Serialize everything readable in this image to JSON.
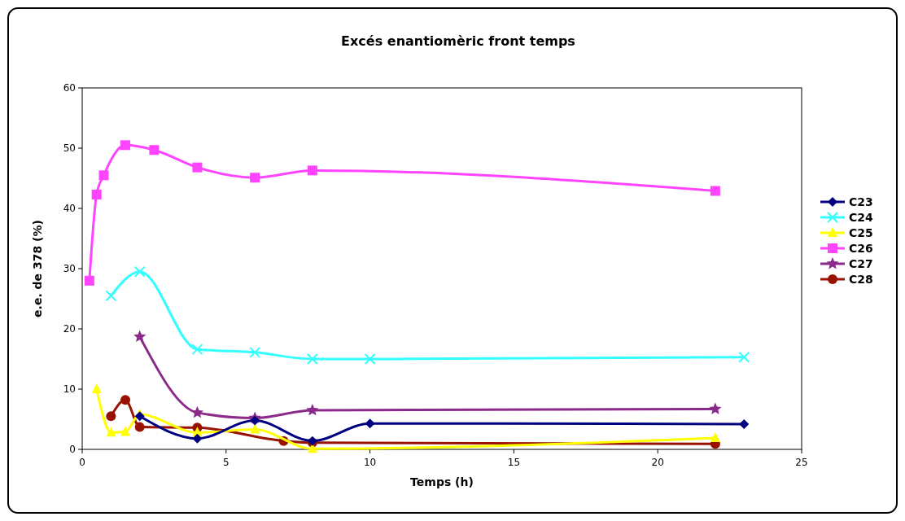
{
  "chart_data": {
    "type": "line",
    "title": "Excés enantiomèric front temps",
    "xlabel": "Temps (h)",
    "ylabel": "e.e. de 378 (%)",
    "xlim": [
      0,
      25
    ],
    "xticks": [
      0,
      5,
      10,
      15,
      20,
      25
    ],
    "ylim": [
      0,
      60
    ],
    "yticks": [
      0,
      10,
      20,
      30,
      40,
      50,
      60
    ],
    "grid": false,
    "legend": "right",
    "line_style": "solid",
    "series": [
      {
        "name": "C23",
        "color": "#000080",
        "marker": "diamond",
        "x": [
          2,
          4,
          6,
          8,
          10,
          23
        ],
        "values": [
          5.5,
          1.8,
          4.8,
          1.4,
          4.3,
          4.2
        ]
      },
      {
        "name": "C24",
        "color": "#33ffff",
        "marker": "cross",
        "x": [
          1,
          2,
          4,
          6,
          8,
          10,
          23
        ],
        "values": [
          25.5,
          29.5,
          16.6,
          16.1,
          15,
          15,
          15.3
        ]
      },
      {
        "name": "C25",
        "color": "#ffff00",
        "marker": "triangle",
        "x": [
          0.5,
          1,
          1.5,
          2,
          4,
          6,
          8,
          22
        ],
        "values": [
          10,
          2.8,
          2.9,
          5.8,
          2.8,
          3.3,
          0.1,
          1.9
        ]
      },
      {
        "name": "C26",
        "color": "#ff44ff",
        "marker": "square",
        "x": [
          0.25,
          0.5,
          0.75,
          1.5,
          2.5,
          4,
          6,
          8,
          22
        ],
        "values": [
          28,
          42.3,
          45.5,
          50.5,
          49.7,
          46.8,
          45.1,
          46.3,
          42.9
        ]
      },
      {
        "name": "C27",
        "color": "#8b2a8b",
        "marker": "star",
        "x": [
          2,
          4,
          6,
          8,
          22
        ],
        "values": [
          18.7,
          6.1,
          5.2,
          6.5,
          6.7
        ]
      },
      {
        "name": "C28",
        "color": "#991100",
        "marker": "circle",
        "x": [
          1,
          1.5,
          2,
          4,
          7,
          8,
          22
        ],
        "values": [
          5.5,
          8.2,
          3.7,
          3.6,
          1.4,
          1.1,
          0.9
        ]
      }
    ]
  }
}
